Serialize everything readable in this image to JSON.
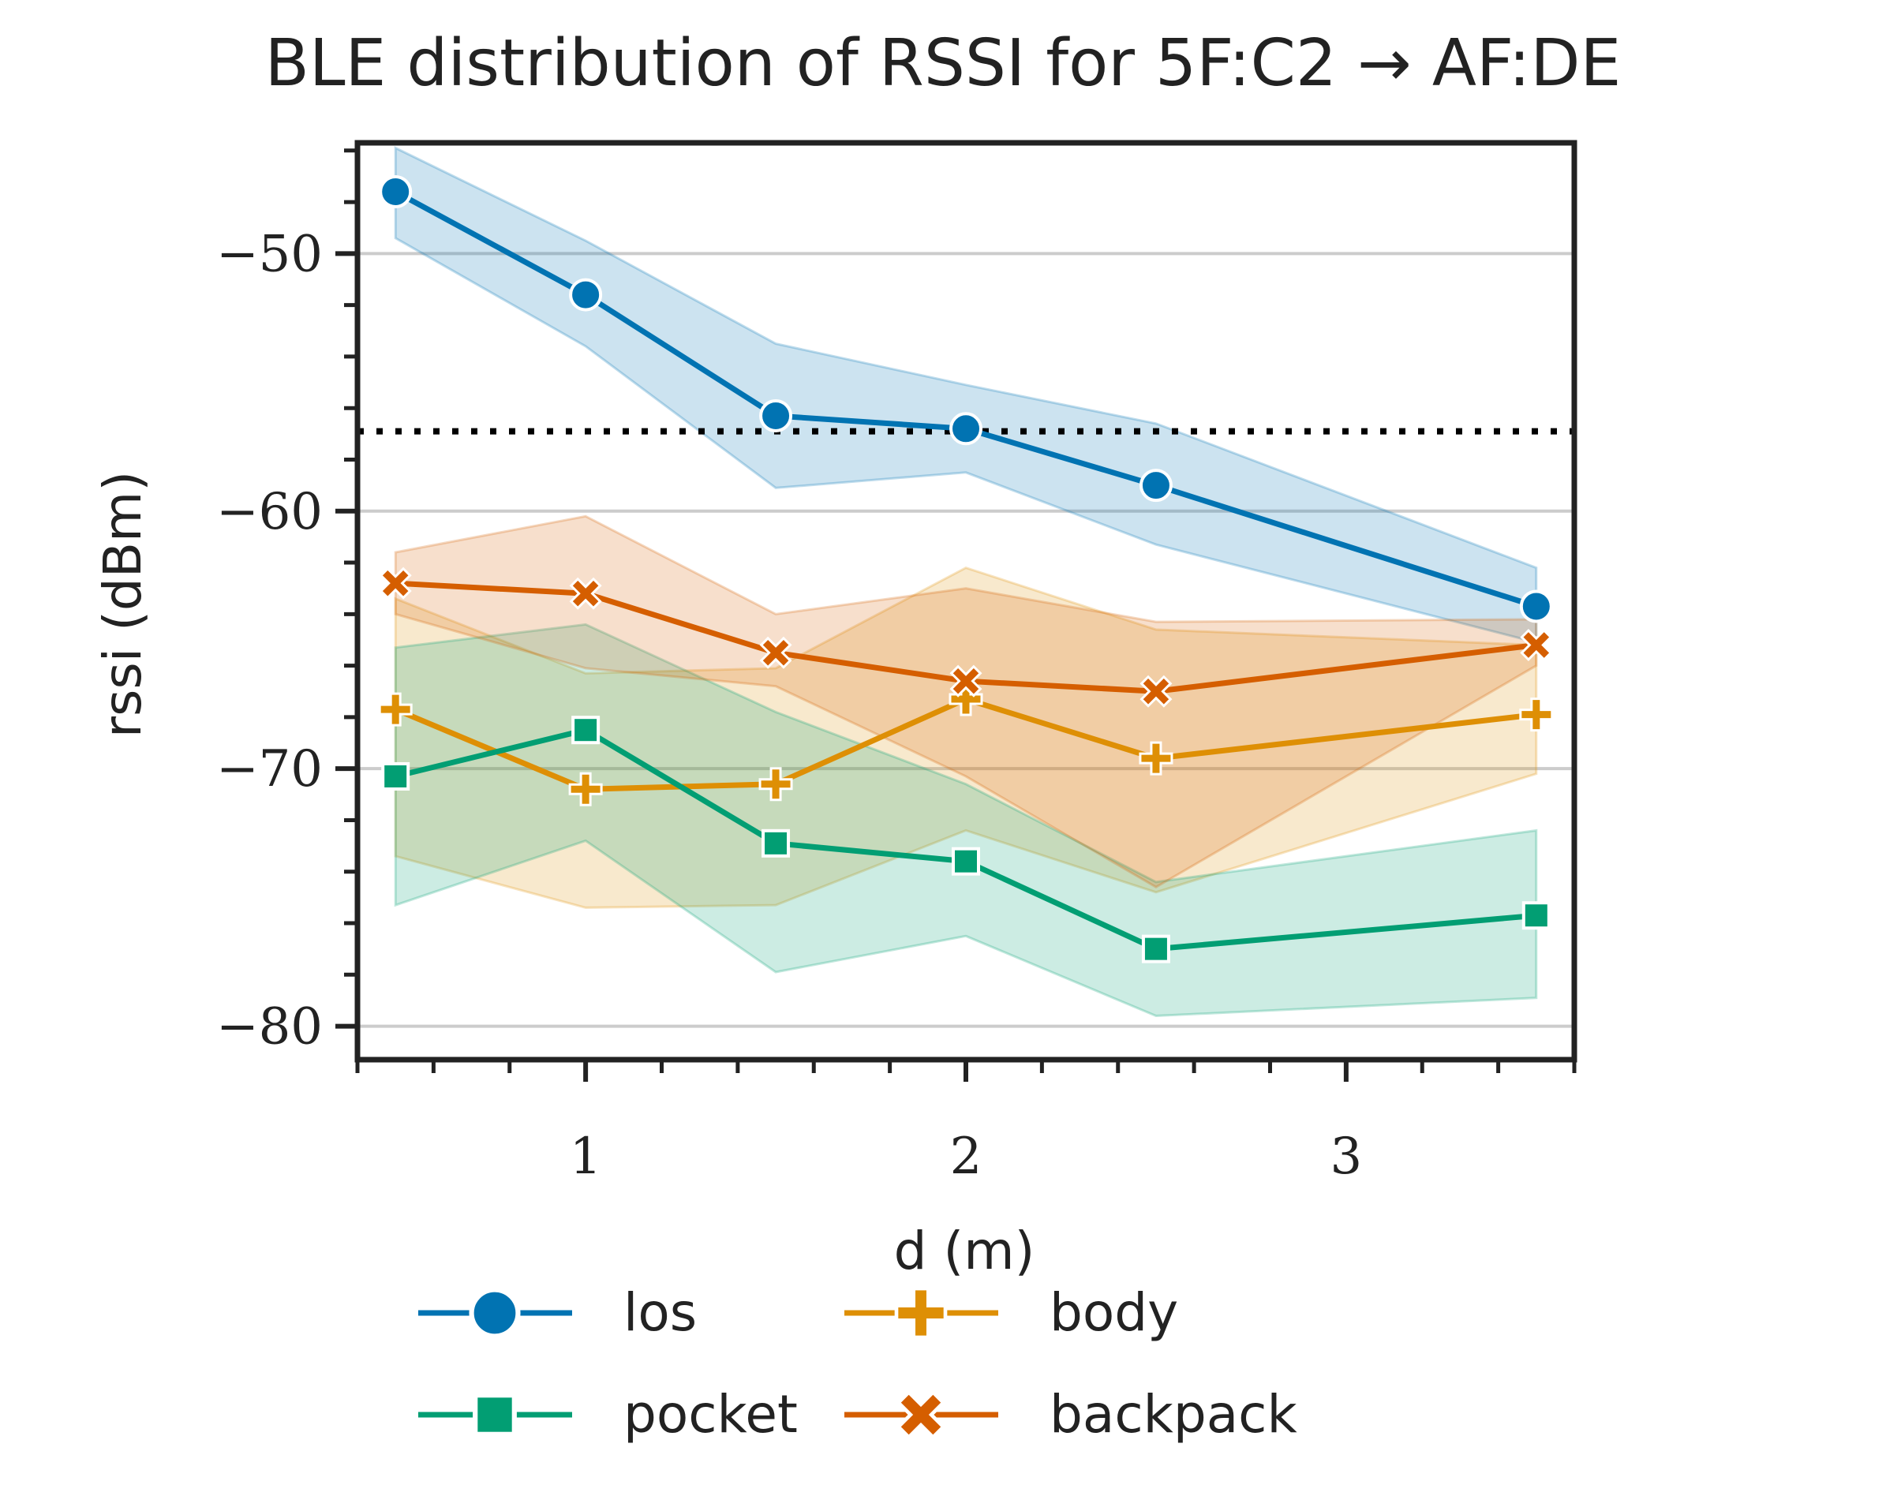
{
  "chart_data": {
    "type": "line",
    "title": "BLE distribution of RSSI for 5F:C2 → AF:DE",
    "xlabel": "d (m)",
    "ylabel": "rssi (dBm)",
    "xlim": [
      0.4,
      3.6
    ],
    "ylim": [
      -81.3,
      -45.7
    ],
    "x_ticks": [
      1,
      2,
      3
    ],
    "x_tick_labels": [
      "1",
      "2",
      "3"
    ],
    "y_ticks": [
      -80,
      -70,
      -60,
      -50
    ],
    "y_tick_labels": [
      "−80",
      "−70",
      "−60",
      "−50"
    ],
    "grid": "horizontal",
    "reference_line": {
      "y": -56.9,
      "style": "dotted",
      "color": "#000000"
    },
    "legend": {
      "placement": "bottom",
      "columns": 2
    },
    "x": [
      0.5,
      1.0,
      1.5,
      2.0,
      2.5,
      3.5
    ],
    "series": [
      {
        "name": "los",
        "color": "#0173b2",
        "marker": "circle",
        "values": [
          -47.6,
          -51.6,
          -56.3,
          -56.8,
          -59.0,
          -63.7
        ],
        "ci_low": [
          -49.4,
          -53.6,
          -59.1,
          -58.5,
          -61.3,
          -65.1
        ],
        "ci_high": [
          -45.9,
          -49.5,
          -53.5,
          -55.1,
          -56.6,
          -62.2
        ]
      },
      {
        "name": "body",
        "color": "#de8f05",
        "marker": "plus",
        "values": [
          -67.7,
          -70.8,
          -70.6,
          -67.3,
          -69.6,
          -67.9
        ],
        "ci_low": [
          -73.4,
          -75.4,
          -75.3,
          -72.4,
          -74.8,
          -70.2
        ],
        "ci_high": [
          -63.4,
          -66.3,
          -66.1,
          -62.2,
          -64.6,
          -65.2
        ]
      },
      {
        "name": "pocket",
        "color": "#029e73",
        "marker": "square",
        "values": [
          -70.3,
          -68.5,
          -72.9,
          -73.6,
          -77.0,
          -75.7
        ],
        "ci_low": [
          -75.3,
          -72.8,
          -77.9,
          -76.5,
          -79.6,
          -78.9
        ],
        "ci_high": [
          -65.3,
          -64.4,
          -67.8,
          -70.6,
          -74.4,
          -72.4
        ]
      },
      {
        "name": "backpack",
        "color": "#d55e00",
        "marker": "x",
        "values": [
          -62.8,
          -63.2,
          -65.5,
          -66.6,
          -67.0,
          -65.2
        ],
        "ci_low": [
          -64.0,
          -66.1,
          -66.8,
          -70.3,
          -74.6,
          -66.0
        ],
        "ci_high": [
          -61.6,
          -60.2,
          -64.0,
          -63.0,
          -64.3,
          -64.2
        ]
      }
    ]
  }
}
